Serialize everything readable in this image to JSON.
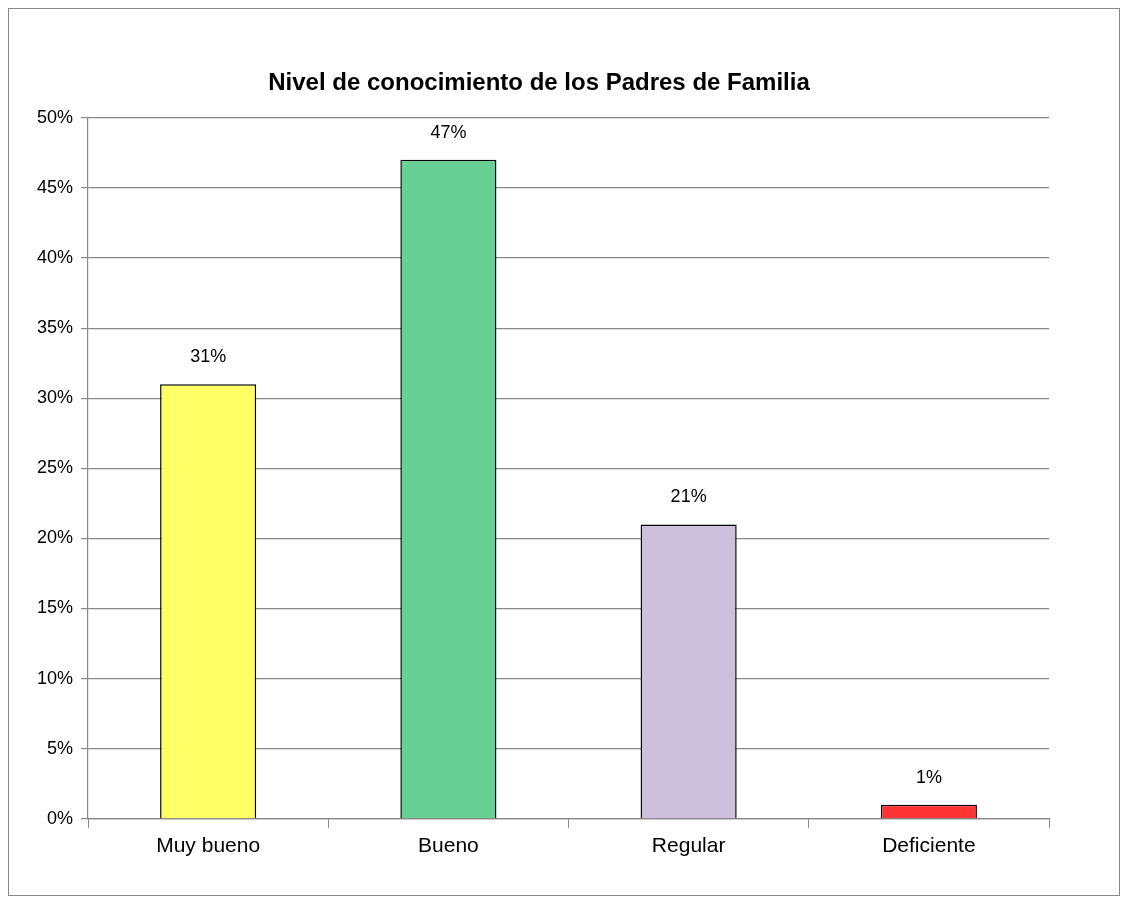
{
  "chart_data": {
    "type": "bar",
    "title": "Nivel de conocimiento de los Padres de Familia",
    "categories": [
      "Muy bueno",
      "Bueno",
      "Regular",
      "Deficiente"
    ],
    "values": [
      31,
      47,
      21,
      1
    ],
    "colors": [
      "#ffff66",
      "#66d095",
      "#ccc0da",
      "#ff3333"
    ],
    "value_labels": [
      "31%",
      "47%",
      "21%",
      "1%"
    ],
    "ylim": [
      0,
      50
    ],
    "yticks": [
      {
        "value": 0,
        "label": "0%"
      },
      {
        "value": 5,
        "label": "5%"
      },
      {
        "value": 10,
        "label": "10%"
      },
      {
        "value": 15,
        "label": "15%"
      },
      {
        "value": 20,
        "label": "20%"
      },
      {
        "value": 25,
        "label": "25%"
      },
      {
        "value": 30,
        "label": "30%"
      },
      {
        "value": 35,
        "label": "35%"
      },
      {
        "value": 40,
        "label": "40%"
      },
      {
        "value": 45,
        "label": "45%"
      },
      {
        "value": 50,
        "label": "50%"
      }
    ],
    "grid": "y"
  }
}
